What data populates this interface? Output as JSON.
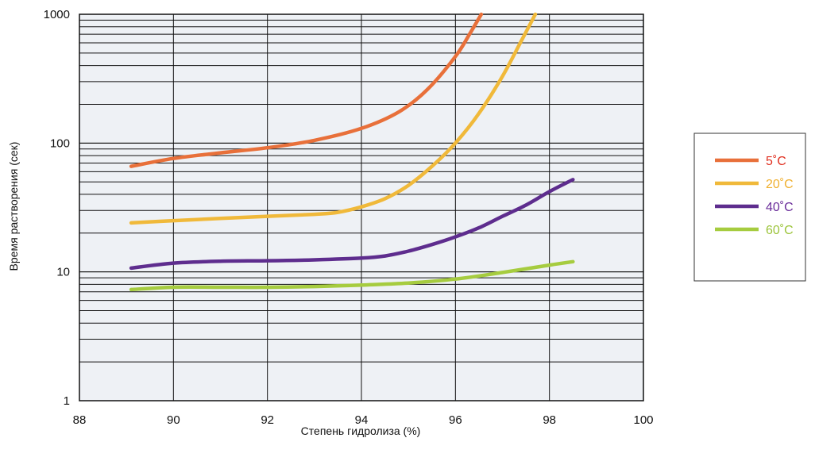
{
  "chart_data": {
    "type": "line",
    "xlabel": "Степень гидролиза (%)",
    "ylabel": "Время растворения (сек)",
    "xlim": [
      88,
      100
    ],
    "ylim": [
      1,
      1000
    ],
    "yscale": "log",
    "grid": true,
    "legend_position": "right",
    "x_ticks": [
      "88",
      "90",
      "92",
      "94",
      "96",
      "98",
      "100"
    ],
    "y_ticks": [
      "1",
      "10",
      "100",
      "1000"
    ],
    "series": [
      {
        "name": "5˚C",
        "color": "#E8703A",
        "legend_color": "#E03020",
        "x": [
          89.1,
          90,
          91,
          92,
          93,
          94,
          94.8,
          95.4,
          96,
          96.3,
          96.55
        ],
        "y": [
          66,
          76,
          84,
          92,
          105,
          130,
          175,
          260,
          470,
          700,
          1000
        ]
      },
      {
        "name": "20˚C",
        "color": "#F0B93A",
        "legend_color": "#F0B030",
        "x": [
          89.1,
          90,
          91,
          92,
          93,
          93.5,
          94,
          94.5,
          95,
          95.5,
          96,
          96.5,
          97,
          97.4,
          97.7
        ],
        "y": [
          24,
          25,
          26,
          27,
          28,
          29,
          32,
          37,
          47,
          66,
          100,
          170,
          330,
          620,
          1000
        ]
      },
      {
        "name": "40˚C",
        "color": "#5E2D8E",
        "legend_color": "#6A2D9A",
        "x": [
          89.1,
          90,
          91,
          92,
          93,
          94,
          94.5,
          95,
          95.5,
          96,
          96.5,
          97,
          97.5,
          98,
          98.5
        ],
        "y": [
          10.7,
          11.7,
          12.1,
          12.2,
          12.4,
          12.8,
          13.3,
          14.5,
          16.3,
          18.7,
          22,
          27,
          33,
          42,
          52
        ]
      },
      {
        "name": "60˚C",
        "color": "#A6CC3F",
        "legend_color": "#9CC43A",
        "x": [
          89.1,
          90,
          91,
          92,
          93,
          94,
          95,
          96,
          97,
          98,
          98.5
        ],
        "y": [
          7.3,
          7.6,
          7.6,
          7.6,
          7.7,
          7.9,
          8.2,
          8.8,
          9.9,
          11.3,
          12
        ]
      }
    ]
  }
}
